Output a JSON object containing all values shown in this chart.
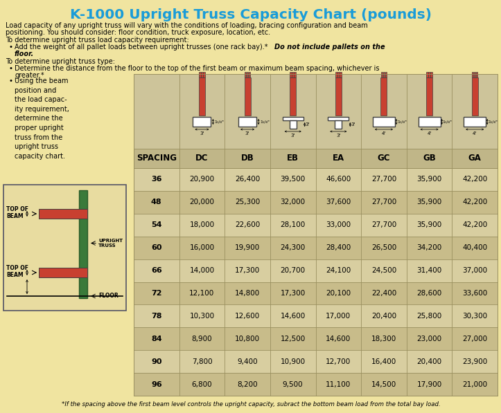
{
  "title": "K-1000 Upright Truss Capacity Chart (pounds)",
  "title_color": "#1a9cd8",
  "bg_color": "#f0e4a0",
  "table_bg_light": "#d8cea0",
  "table_bg_dark": "#c8bc8a",
  "header_bg": "#c8bc8a",
  "diag_bg": "#ccc49a",
  "columns": [
    "SPACING",
    "DC",
    "DB",
    "EB",
    "EA",
    "GC",
    "GB",
    "GA"
  ],
  "rows": [
    [
      36,
      20900,
      26400,
      39500,
      46600,
      27700,
      35900,
      42200
    ],
    [
      48,
      20000,
      25300,
      32000,
      37600,
      27700,
      35900,
      42200
    ],
    [
      54,
      18000,
      22600,
      28100,
      33000,
      27700,
      35900,
      42200
    ],
    [
      60,
      16000,
      19900,
      24300,
      28400,
      26500,
      34200,
      40400
    ],
    [
      66,
      14000,
      17300,
      20700,
      24100,
      24500,
      31400,
      37000
    ],
    [
      72,
      12100,
      14800,
      17300,
      20100,
      22400,
      28600,
      33600
    ],
    [
      78,
      10300,
      12600,
      14600,
      17000,
      20400,
      25800,
      30300
    ],
    [
      84,
      8900,
      10800,
      12500,
      14600,
      18300,
      23000,
      27000
    ],
    [
      90,
      7800,
      9400,
      10900,
      12700,
      16400,
      20400,
      23900
    ],
    [
      96,
      6800,
      8200,
      9500,
      11100,
      14500,
      17900,
      21000
    ]
  ],
  "intro1": "Load capacity of any upright truss will vary with the conditions of loading, bracing configuration and beam",
  "intro1b": "positioning. You should consider: floor condition, truck exposure, location, etc.",
  "intro2": "To determine upright truss load capacity requirement:",
  "bullet1a": "Add the weight of all pallet loads between upright trusses (one rack bay).* ",
  "bullet1b": "Do not include pallets on the",
  "bullet1c": "floor.",
  "intro3": "To determine upright truss type:",
  "bullet2": "Determine the distance from the floor to the top of the first beam or maximum beam spacing, whichever is",
  "bullet2b": "greater.*",
  "bullet3": "Using the beam\nposition and\nthe load capac-\nity requirement,\ndetermine the\nproper upright\ntruss from the\nupright truss\ncapacity chart.",
  "footer": "*If the spacing above the first beam level controls the upright capacity, subract the bottom beam load from the total bay load.",
  "post_color": "#c84030",
  "post_dark": "#a03020",
  "beam_outline": "#404040",
  "green_post": "#3a7a3a",
  "green_dark": "#2a5a2a"
}
